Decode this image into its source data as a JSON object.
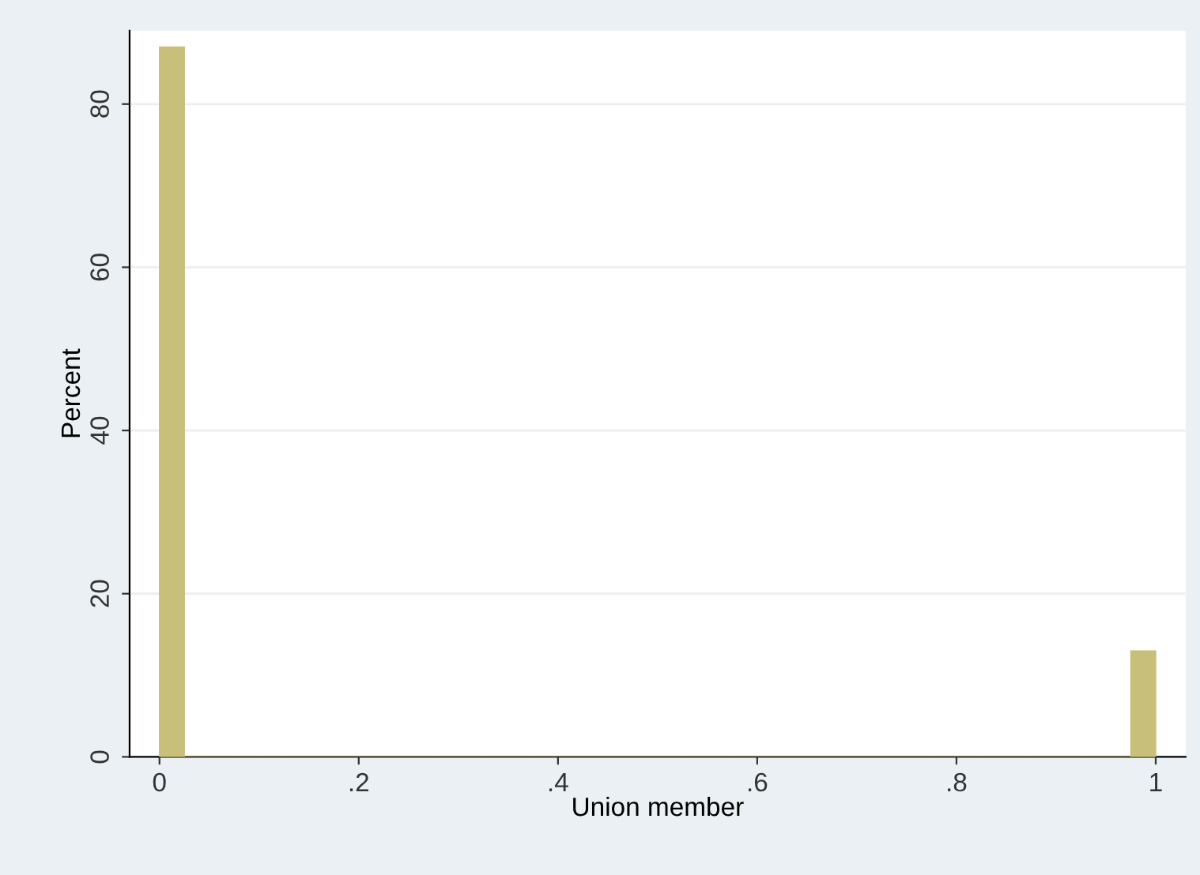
{
  "chart_data": {
    "type": "histogram",
    "xlabel": "Union member",
    "ylabel": "Percent",
    "bins": [
      0,
      0.025,
      0.05,
      0.075,
      0.1,
      0.125,
      0.15,
      0.175,
      0.2,
      0.225,
      0.25,
      0.275,
      0.3,
      0.325,
      0.35,
      0.375,
      0.4,
      0.425,
      0.45,
      0.475,
      0.5,
      0.525,
      0.55,
      0.575,
      0.6,
      0.625,
      0.65,
      0.675,
      0.7,
      0.725,
      0.75,
      0.775,
      0.8,
      0.825,
      0.85,
      0.875,
      0.9,
      0.925,
      0.95,
      0.975,
      1
    ],
    "values": [
      87,
      0,
      0,
      0,
      0,
      0,
      0,
      0,
      0,
      0,
      0,
      0,
      0,
      0,
      0,
      0,
      0,
      0,
      0,
      0,
      0,
      0,
      0,
      0,
      0,
      0,
      0,
      0,
      0,
      0,
      0,
      0,
      0,
      0,
      0,
      0,
      0,
      0,
      0,
      13
    ],
    "color": "#c8bf7a",
    "xlim": [
      -0.03,
      1.03
    ],
    "ylim": [
      0,
      89
    ],
    "xticks": [
      0,
      {
        "value": 0.2,
        "label": ".2"
      },
      {
        "value": 0.4,
        "label": ".4"
      },
      {
        "value": 0.6,
        "label": ".6"
      },
      {
        "value": 0.8,
        "label": ".8"
      },
      1
    ],
    "yticks": [
      0,
      20,
      40,
      60,
      80
    ],
    "grid": "y"
  }
}
